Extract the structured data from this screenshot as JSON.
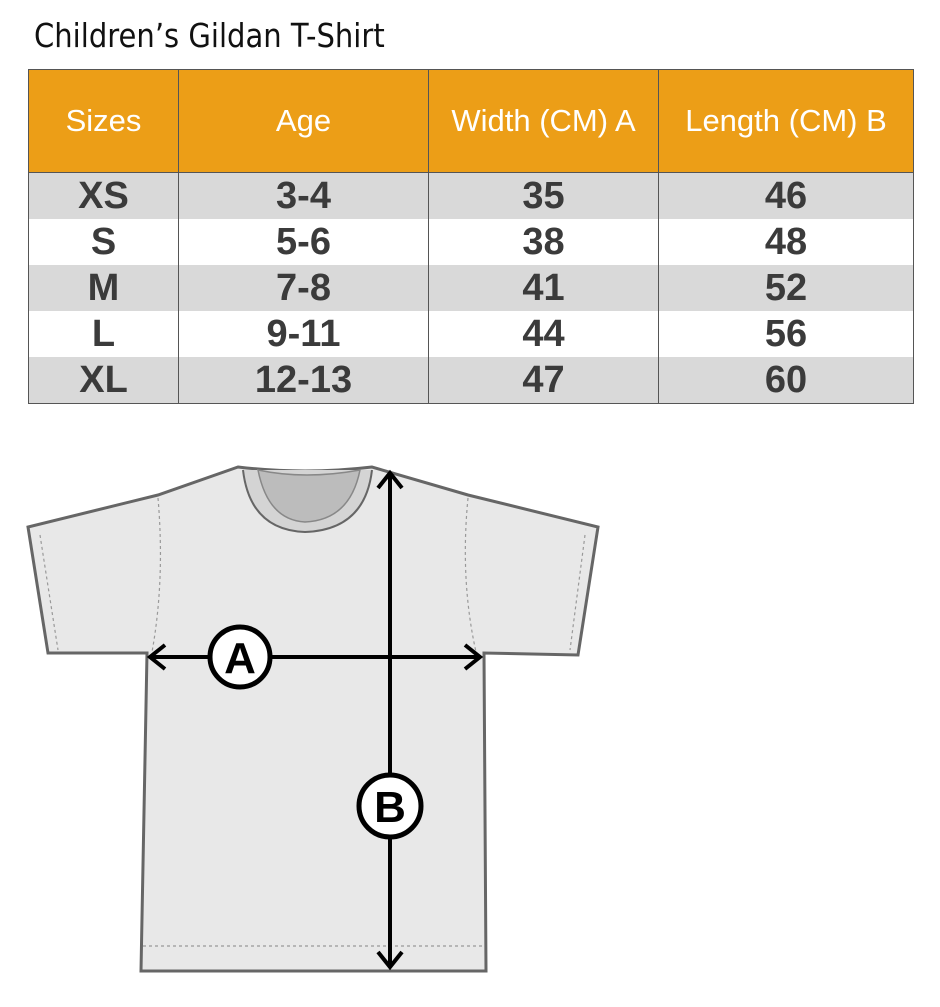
{
  "title": "Children’s Gildan T-Shirt",
  "table": {
    "headers": [
      "Sizes",
      "Age",
      "Width (CM) A",
      "Length  (CM) B"
    ],
    "rows": [
      [
        "XS",
        "3-4",
        "35",
        "46"
      ],
      [
        "S",
        "5-6",
        "38",
        "48"
      ],
      [
        "M",
        "7-8",
        "41",
        "52"
      ],
      [
        "L",
        "9-11",
        "44",
        "56"
      ],
      [
        "XL",
        "12-13",
        "47",
        "60"
      ]
    ]
  },
  "diagram": {
    "label_a": "A",
    "label_b": "B"
  },
  "colors": {
    "header": "#ec9e17",
    "row_alt": "#d9d9d9",
    "shirt": "#e8e8e8"
  }
}
